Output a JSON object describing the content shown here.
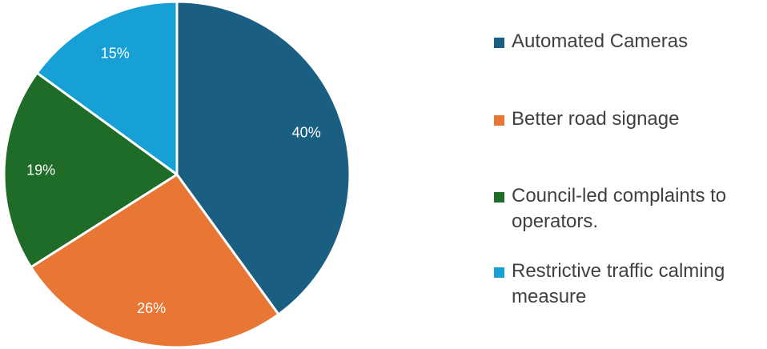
{
  "chart_data": {
    "type": "pie",
    "title": "",
    "categories": [
      "Automated Cameras",
      "Better road signage",
      "Council-led complaints to operators.",
      "Restrictive traffic calming measure"
    ],
    "values": [
      40,
      26,
      19,
      15
    ],
    "value_labels": [
      "40%",
      "26%",
      "19%",
      "15%"
    ],
    "colors": [
      "#1a5e82",
      "#e87634",
      "#1f6b28",
      "#16a0d6"
    ],
    "start_angle": "12 o'clock",
    "direction": "clockwise",
    "slice_border_color": "#ffffff",
    "legend_position": "right"
  }
}
